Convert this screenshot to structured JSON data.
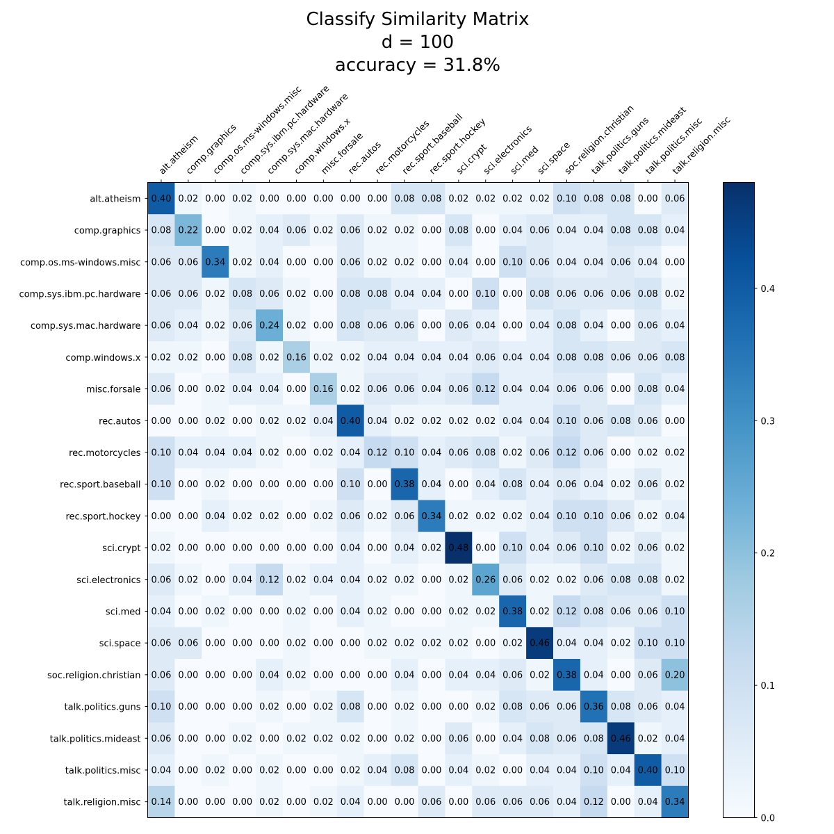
{
  "chart_data": {
    "type": "heatmap",
    "title": [
      "Classify Similarity Matrix",
      "d = 100",
      "accuracy = 31.8%"
    ],
    "categories": [
      "alt.atheism",
      "comp.graphics",
      "comp.os.ms-windows.misc",
      "comp.sys.ibm.pc.hardware",
      "comp.sys.mac.hardware",
      "comp.windows.x",
      "misc.forsale",
      "rec.autos",
      "rec.motorcycles",
      "rec.sport.baseball",
      "rec.sport.hockey",
      "sci.crypt",
      "sci.electronics",
      "sci.med",
      "sci.space",
      "soc.religion.christian",
      "talk.politics.guns",
      "talk.politics.mideast",
      "talk.politics.misc",
      "talk.religion.misc"
    ],
    "values": [
      [
        0.4,
        0.02,
        0.0,
        0.02,
        0.0,
        0.0,
        0.0,
        0.0,
        0.0,
        0.08,
        0.08,
        0.02,
        0.02,
        0.02,
        0.02,
        0.1,
        0.08,
        0.08,
        0.0,
        0.06
      ],
      [
        0.08,
        0.22,
        0.0,
        0.02,
        0.04,
        0.06,
        0.02,
        0.06,
        0.02,
        0.02,
        0.0,
        0.08,
        0.0,
        0.04,
        0.06,
        0.04,
        0.04,
        0.08,
        0.08,
        0.04
      ],
      [
        0.06,
        0.06,
        0.34,
        0.02,
        0.04,
        0.0,
        0.0,
        0.06,
        0.02,
        0.02,
        0.0,
        0.04,
        0.0,
        0.1,
        0.06,
        0.04,
        0.04,
        0.06,
        0.04,
        0.0
      ],
      [
        0.06,
        0.06,
        0.02,
        0.08,
        0.06,
        0.02,
        0.0,
        0.08,
        0.08,
        0.04,
        0.04,
        0.0,
        0.1,
        0.0,
        0.08,
        0.06,
        0.06,
        0.06,
        0.08,
        0.02
      ],
      [
        0.06,
        0.04,
        0.02,
        0.06,
        0.24,
        0.02,
        0.0,
        0.08,
        0.06,
        0.06,
        0.0,
        0.06,
        0.04,
        0.0,
        0.04,
        0.08,
        0.04,
        0.0,
        0.06,
        0.04
      ],
      [
        0.02,
        0.02,
        0.0,
        0.08,
        0.02,
        0.16,
        0.02,
        0.02,
        0.04,
        0.04,
        0.04,
        0.04,
        0.06,
        0.04,
        0.04,
        0.08,
        0.08,
        0.06,
        0.06,
        0.08
      ],
      [
        0.06,
        0.0,
        0.02,
        0.04,
        0.04,
        0.0,
        0.16,
        0.02,
        0.06,
        0.06,
        0.04,
        0.06,
        0.12,
        0.04,
        0.04,
        0.06,
        0.06,
        0.0,
        0.08,
        0.04
      ],
      [
        0.0,
        0.0,
        0.02,
        0.0,
        0.02,
        0.02,
        0.04,
        0.4,
        0.04,
        0.02,
        0.02,
        0.02,
        0.02,
        0.04,
        0.04,
        0.1,
        0.06,
        0.08,
        0.06,
        0.0
      ],
      [
        0.1,
        0.04,
        0.04,
        0.04,
        0.02,
        0.0,
        0.02,
        0.04,
        0.12,
        0.1,
        0.04,
        0.06,
        0.08,
        0.02,
        0.06,
        0.12,
        0.06,
        0.0,
        0.02,
        0.02
      ],
      [
        0.1,
        0.0,
        0.02,
        0.0,
        0.0,
        0.0,
        0.0,
        0.1,
        0.0,
        0.38,
        0.04,
        0.0,
        0.04,
        0.08,
        0.04,
        0.06,
        0.04,
        0.02,
        0.06,
        0.02
      ],
      [
        0.0,
        0.0,
        0.04,
        0.02,
        0.02,
        0.0,
        0.02,
        0.06,
        0.02,
        0.06,
        0.34,
        0.02,
        0.02,
        0.02,
        0.04,
        0.1,
        0.1,
        0.06,
        0.02,
        0.04
      ],
      [
        0.02,
        0.0,
        0.0,
        0.0,
        0.0,
        0.0,
        0.0,
        0.04,
        0.0,
        0.04,
        0.02,
        0.48,
        0.0,
        0.1,
        0.04,
        0.06,
        0.1,
        0.02,
        0.06,
        0.02
      ],
      [
        0.06,
        0.02,
        0.0,
        0.04,
        0.12,
        0.02,
        0.04,
        0.04,
        0.02,
        0.02,
        0.0,
        0.02,
        0.26,
        0.06,
        0.02,
        0.02,
        0.06,
        0.08,
        0.08,
        0.02
      ],
      [
        0.04,
        0.0,
        0.02,
        0.0,
        0.0,
        0.02,
        0.0,
        0.04,
        0.02,
        0.0,
        0.0,
        0.02,
        0.02,
        0.38,
        0.02,
        0.12,
        0.08,
        0.06,
        0.06,
        0.1
      ],
      [
        0.06,
        0.06,
        0.0,
        0.0,
        0.0,
        0.02,
        0.0,
        0.0,
        0.02,
        0.02,
        0.02,
        0.02,
        0.0,
        0.02,
        0.46,
        0.04,
        0.04,
        0.02,
        0.1,
        0.1
      ],
      [
        0.06,
        0.0,
        0.0,
        0.0,
        0.04,
        0.02,
        0.0,
        0.0,
        0.0,
        0.04,
        0.0,
        0.04,
        0.04,
        0.06,
        0.02,
        0.38,
        0.04,
        0.0,
        0.06,
        0.2
      ],
      [
        0.1,
        0.0,
        0.0,
        0.0,
        0.02,
        0.0,
        0.02,
        0.08,
        0.0,
        0.02,
        0.0,
        0.0,
        0.02,
        0.08,
        0.06,
        0.06,
        0.36,
        0.08,
        0.06,
        0.04
      ],
      [
        0.06,
        0.0,
        0.0,
        0.02,
        0.0,
        0.02,
        0.02,
        0.02,
        0.0,
        0.02,
        0.0,
        0.06,
        0.0,
        0.04,
        0.08,
        0.06,
        0.08,
        0.46,
        0.02,
        0.04
      ],
      [
        0.04,
        0.0,
        0.02,
        0.0,
        0.02,
        0.0,
        0.0,
        0.02,
        0.04,
        0.08,
        0.0,
        0.04,
        0.02,
        0.0,
        0.04,
        0.04,
        0.1,
        0.04,
        0.4,
        0.1
      ],
      [
        0.14,
        0.0,
        0.0,
        0.0,
        0.02,
        0.0,
        0.02,
        0.04,
        0.0,
        0.0,
        0.06,
        0.0,
        0.06,
        0.06,
        0.06,
        0.04,
        0.12,
        0.0,
        0.04,
        0.34
      ]
    ],
    "colorbar": {
      "range": [
        0.0,
        0.48
      ],
      "ticks": [
        0.0,
        0.1,
        0.2,
        0.3,
        0.4
      ],
      "tick_labels": [
        "0.0",
        "0.1",
        "0.2",
        "0.3",
        "0.4"
      ],
      "colormap": "Blues"
    },
    "x_axis_position": "top",
    "grid": false
  }
}
